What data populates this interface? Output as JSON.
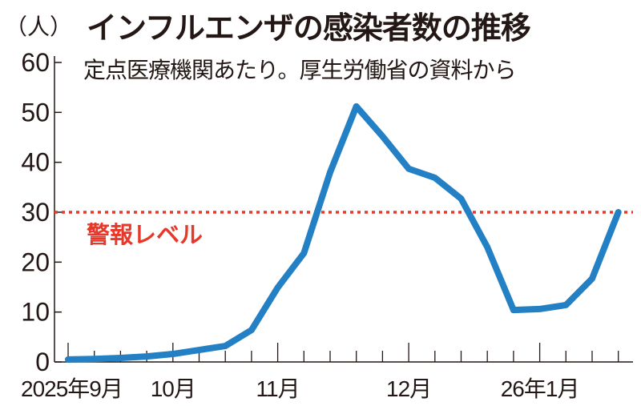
{
  "chart_data": {
    "type": "line",
    "unit_label": "（人）",
    "title": "インフルエンザの感染者数の推移",
    "subtitle": "定点医療機関あたり。厚生労働省の資料から",
    "ylim": [
      0,
      60
    ],
    "yticks": [
      0,
      10,
      20,
      30,
      40,
      50,
      60
    ],
    "x_tick_labels": [
      {
        "week_index": 0,
        "label": "2025年9月"
      },
      {
        "week_index": 4,
        "label": "10月"
      },
      {
        "week_index": 8,
        "label": "11月"
      },
      {
        "week_index": 13,
        "label": "12月"
      },
      {
        "week_index": 18,
        "label": "26年1月"
      }
    ],
    "series": [
      {
        "values": [
          0.5,
          0.6,
          0.8,
          1.1,
          1.6,
          2.4,
          3.2,
          6.4,
          14.9,
          21.8,
          38.0,
          51.2,
          45.2,
          38.7,
          36.9,
          32.7,
          23.0,
          10.4,
          10.6,
          11.4,
          16.7,
          30.0
        ],
        "color": "#2380c4"
      }
    ],
    "reference_line": {
      "value": 30,
      "label": "警報レベル",
      "color": "#e8382a"
    },
    "grid": false
  }
}
